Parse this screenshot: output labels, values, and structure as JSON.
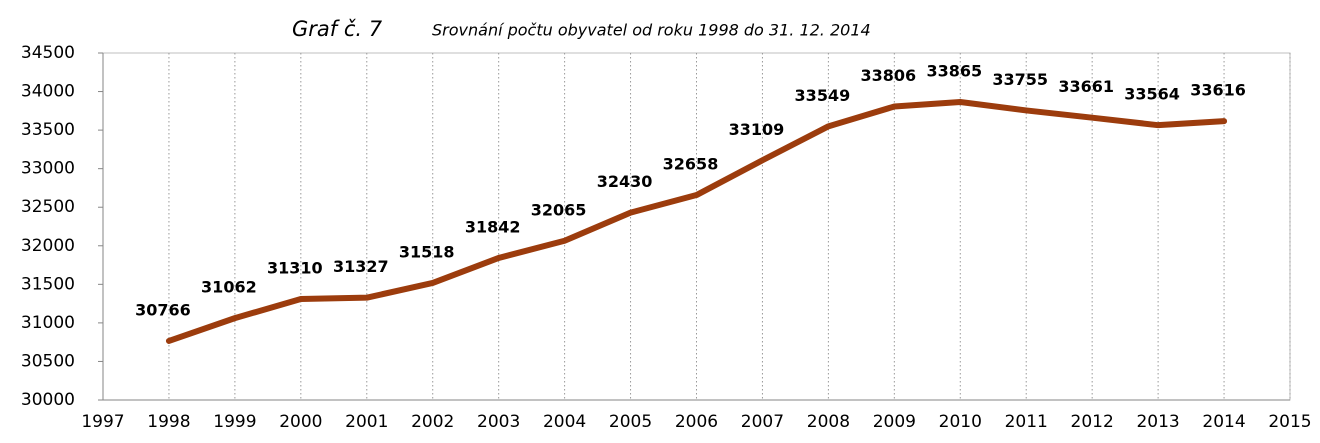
{
  "chart_data": {
    "type": "line",
    "title": "Graf č. 7",
    "subtitle": "Srovnání počtu obyvatel od roku 1998 do 31. 12. 2014",
    "x": [
      1998,
      1999,
      2000,
      2001,
      2002,
      2003,
      2004,
      2005,
      2006,
      2007,
      2008,
      2009,
      2010,
      2011,
      2012,
      2013,
      2014
    ],
    "values": [
      30766,
      31062,
      31310,
      31327,
      31518,
      31842,
      32065,
      32430,
      32658,
      33109,
      33549,
      33806,
      33865,
      33755,
      33661,
      33564,
      33616
    ],
    "color": "#9c3c0d",
    "xlim": [
      1997,
      2015
    ],
    "xticks": [
      1997,
      1998,
      1999,
      2000,
      2001,
      2002,
      2003,
      2004,
      2005,
      2006,
      2007,
      2008,
      2009,
      2010,
      2011,
      2012,
      2013,
      2014,
      2015
    ],
    "ylim": [
      30000,
      34500
    ],
    "yticks": [
      30000,
      30500,
      31000,
      31500,
      32000,
      32500,
      33000,
      33500,
      34000,
      34500
    ],
    "grid": true
  }
}
